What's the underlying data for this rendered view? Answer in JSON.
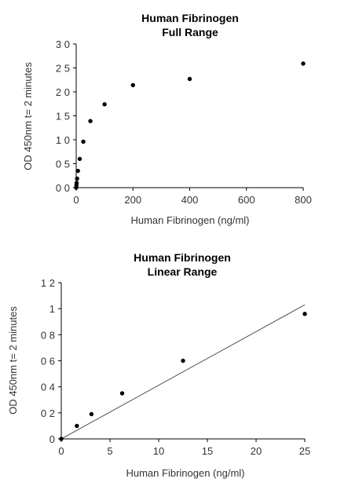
{
  "chart_data": [
    {
      "type": "scatter",
      "title_lines": [
        "Human Fibrinogen",
        "Full Range"
      ],
      "xlabel": "Human Fibrinogen (ng/ml)",
      "ylabel": "OD 450nm t= 2 minutes",
      "xlim": [
        0,
        800
      ],
      "ylim": [
        0,
        3.0
      ],
      "x_ticks": [
        0,
        200,
        400,
        600,
        800
      ],
      "y_ticks": [
        0,
        0.5,
        1.0,
        1.5,
        2.0,
        2.5,
        3.0
      ],
      "x_tick_labels": [
        "0",
        "200",
        "400",
        "600",
        "800"
      ],
      "y_tick_labels": [
        "0 0",
        "0 5",
        "1 0",
        "1 5",
        "2 0",
        "2 5",
        "3 0"
      ],
      "points": [
        {
          "x": 0,
          "y": 0.0
        },
        {
          "x": 0.8,
          "y": 0.05
        },
        {
          "x": 1.6,
          "y": 0.1
        },
        {
          "x": 3.1,
          "y": 0.19
        },
        {
          "x": 6.25,
          "y": 0.35
        },
        {
          "x": 12.5,
          "y": 0.6
        },
        {
          "x": 25,
          "y": 0.96
        },
        {
          "x": 50,
          "y": 1.39
        },
        {
          "x": 100,
          "y": 1.74
        },
        {
          "x": 200,
          "y": 2.14
        },
        {
          "x": 400,
          "y": 2.27
        },
        {
          "x": 800,
          "y": 2.59
        }
      ],
      "trendline": false,
      "grid": false,
      "marker_color": "#000000"
    },
    {
      "type": "scatter",
      "title_lines": [
        "Human Fibrinogen",
        "Linear Range"
      ],
      "xlabel": "Human Fibrinogen (ng/ml)",
      "ylabel": "OD 450nm t= 2 minutes",
      "xlim": [
        0,
        25
      ],
      "ylim": [
        0,
        1.2
      ],
      "x_ticks": [
        0,
        5,
        10,
        15,
        20,
        25
      ],
      "y_ticks": [
        0,
        0.2,
        0.4,
        0.6,
        0.8,
        1.0,
        1.2
      ],
      "x_tick_labels": [
        "0",
        "5",
        "10",
        "15",
        "20",
        "25"
      ],
      "y_tick_labels": [
        "0",
        "0 2",
        "0 4",
        "0 6",
        "0 8",
        "1",
        "1 2"
      ],
      "points": [
        {
          "x": 0,
          "y": 0.0
        },
        {
          "x": 1.6,
          "y": 0.1
        },
        {
          "x": 3.1,
          "y": 0.19
        },
        {
          "x": 6.25,
          "y": 0.35
        },
        {
          "x": 12.5,
          "y": 0.6
        },
        {
          "x": 25,
          "y": 0.96
        }
      ],
      "trendline": true,
      "trendline_points": [
        {
          "x": 0,
          "y": 0.0
        },
        {
          "x": 25,
          "y": 1.03
        }
      ],
      "grid": false,
      "marker_color": "#000000"
    }
  ]
}
